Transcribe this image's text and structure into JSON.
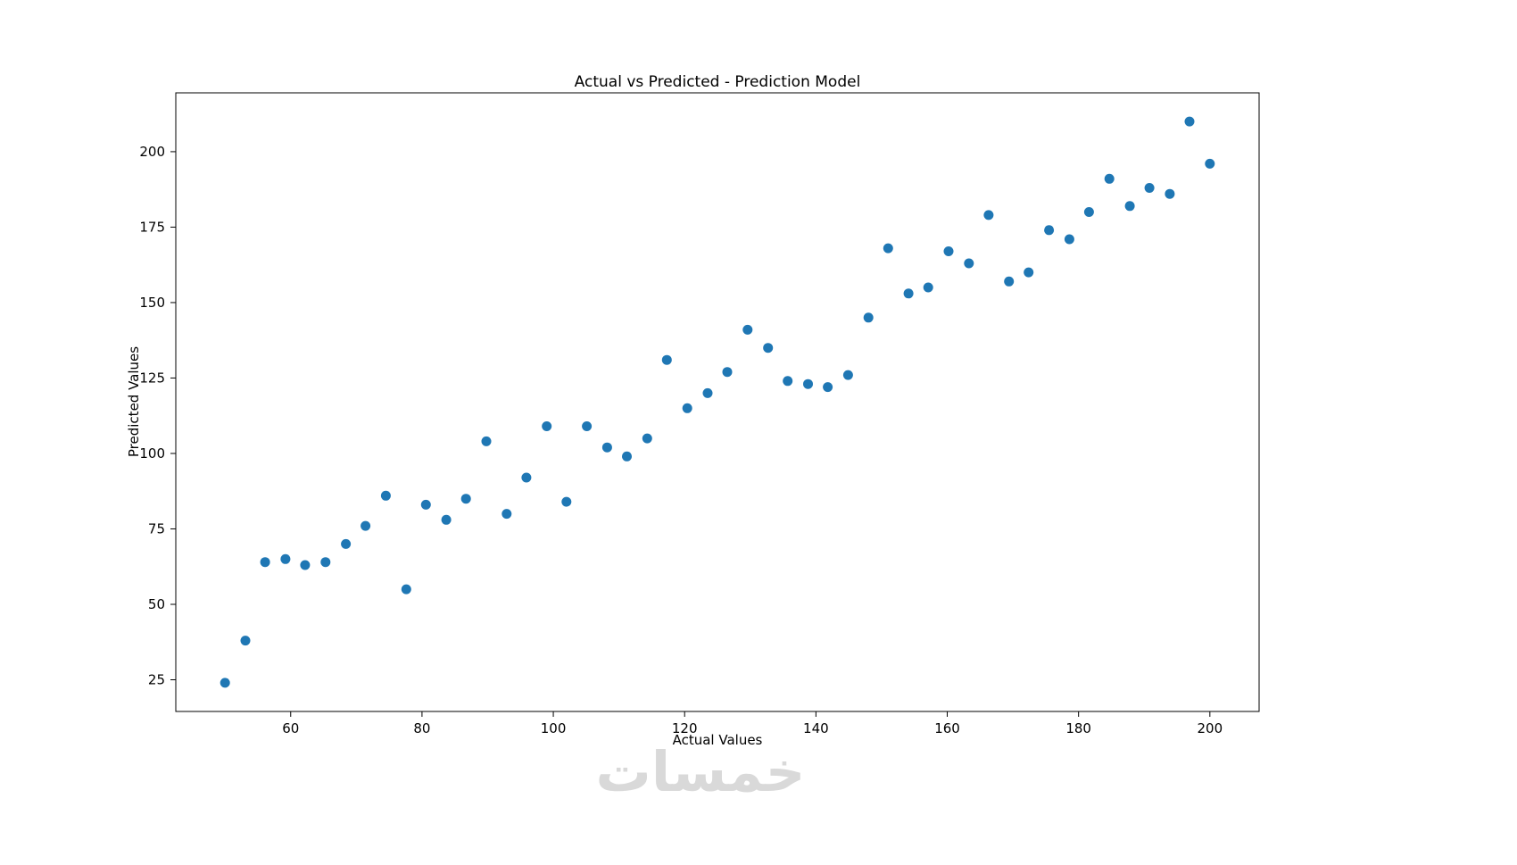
{
  "chart_data": {
    "type": "scatter",
    "title": "Actual vs Predicted - Prediction Model",
    "xlabel": "Actual Values",
    "ylabel": "Predicted Values",
    "xlim": [
      42.5,
      207.5
    ],
    "ylim": [
      14.5,
      219.5
    ],
    "xticks": [
      60,
      80,
      100,
      120,
      140,
      160,
      180,
      200
    ],
    "yticks": [
      25,
      50,
      75,
      100,
      125,
      150,
      175,
      200
    ],
    "grid": false,
    "legend": "none",
    "marker_color": "#1f77b4",
    "x": [
      50.0,
      53.1,
      56.1,
      59.2,
      62.2,
      65.3,
      68.4,
      71.4,
      74.5,
      77.6,
      80.6,
      83.7,
      86.7,
      89.8,
      92.9,
      95.9,
      99.0,
      102.0,
      105.1,
      108.2,
      111.2,
      114.3,
      117.3,
      120.4,
      123.5,
      126.5,
      129.6,
      132.7,
      135.7,
      138.8,
      141.8,
      144.9,
      148.0,
      151.0,
      154.1,
      157.1,
      160.2,
      163.3,
      166.3,
      169.4,
      172.4,
      175.5,
      178.6,
      181.6,
      184.7,
      187.8,
      190.8,
      193.9,
      196.9,
      200.0
    ],
    "y": [
      24,
      38,
      64,
      65,
      63,
      64,
      70,
      76,
      86,
      55,
      83,
      78,
      85,
      104,
      80,
      92,
      109,
      84,
      109,
      102,
      99,
      105,
      131,
      115,
      120,
      127,
      141,
      135,
      124,
      123,
      122,
      126,
      145,
      168,
      153,
      155,
      167,
      163,
      179,
      157,
      160,
      174,
      171,
      180,
      191,
      182,
      188,
      186,
      210,
      196
    ]
  },
  "watermark": {
    "text": "خمسات"
  }
}
